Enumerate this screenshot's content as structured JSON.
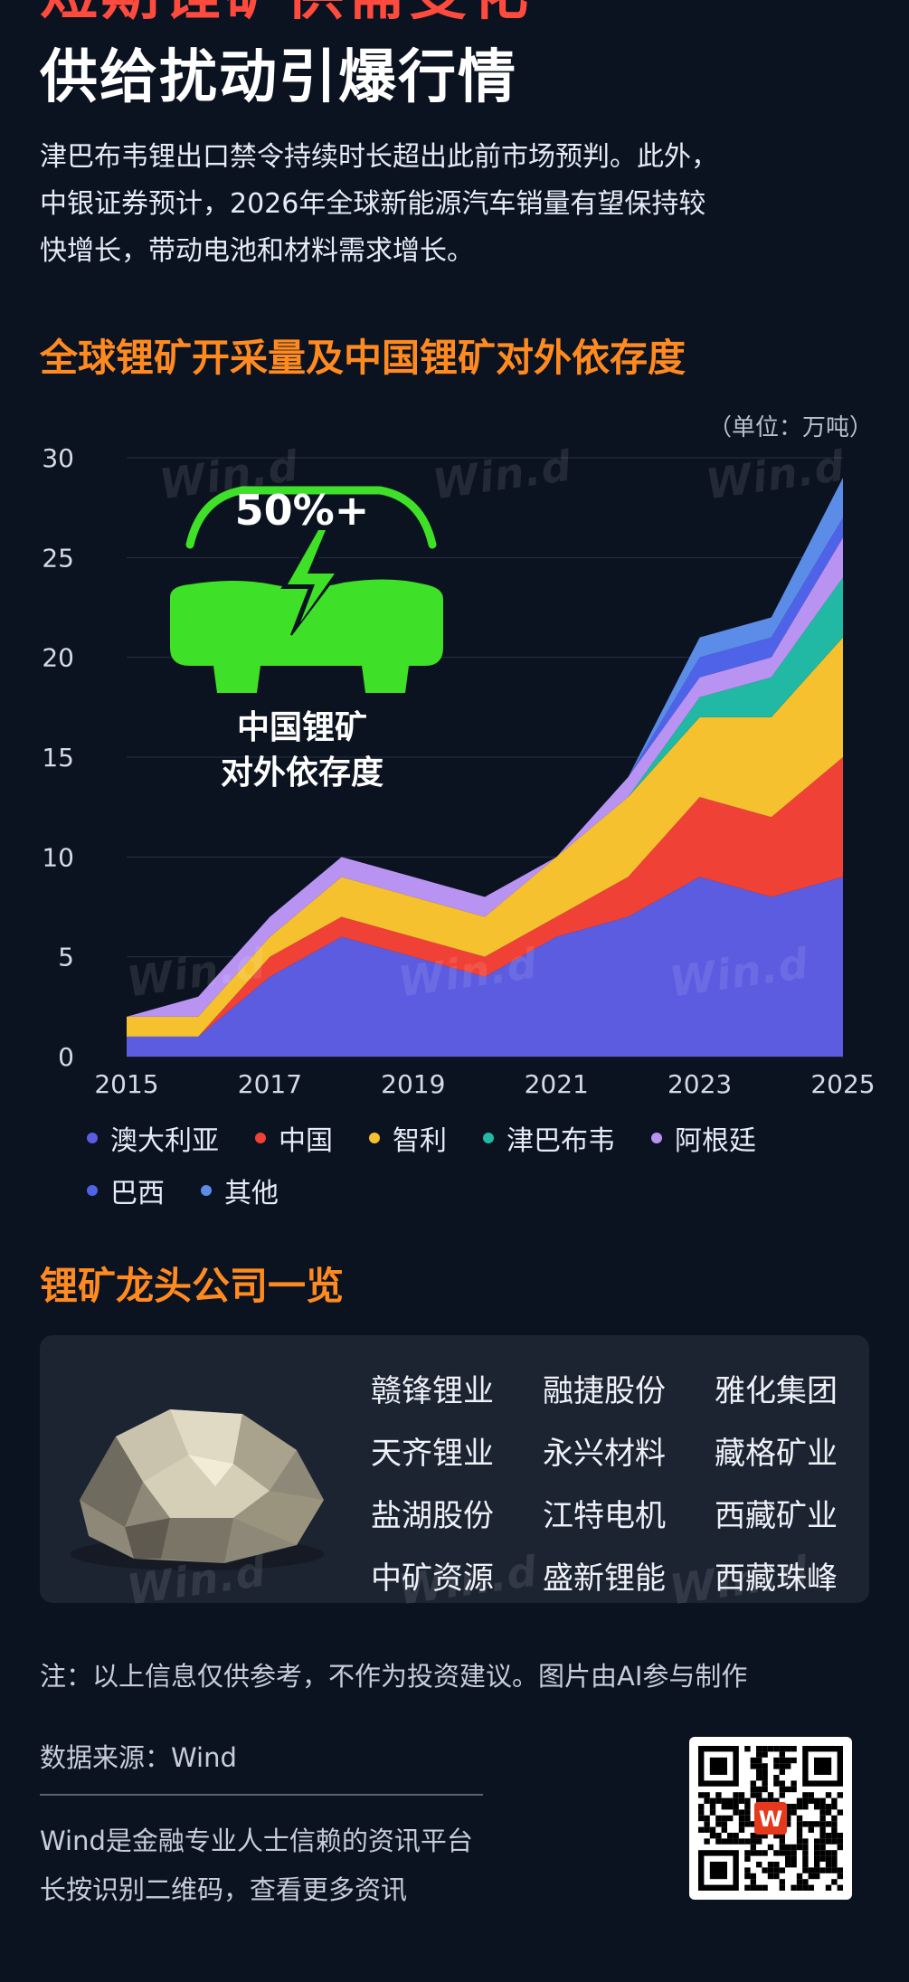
{
  "header": {
    "top_cut_text": "短期锂矿供需变化",
    "headline": "供给扰动引爆行情",
    "lead_lines": [
      "津巴布韦锂出口禁令持续时长超出此前市场预判。此外，",
      "中银证券预计，2026年全球新能源汽车销量有望保持较",
      "快增长，带动电池和材料需求增长。"
    ]
  },
  "chart_section": {
    "title": "全球锂矿开采量及中国锂矿对外依存度",
    "unit": "（单位：万吨）",
    "badge_value": "50%+",
    "badge_label_line1": "中国锂矿",
    "badge_label_line2": "对外依存度"
  },
  "chart_data": {
    "type": "area",
    "stacked": true,
    "x": [
      2015,
      2016,
      2017,
      2018,
      2019,
      2020,
      2021,
      2022,
      2023,
      2024,
      2025
    ],
    "x_tick_labels": [
      "2015",
      "2017",
      "2019",
      "2021",
      "2023",
      "2025"
    ],
    "ylim": [
      0,
      30
    ],
    "y_ticks": [
      0,
      5,
      10,
      15,
      20,
      25,
      30
    ],
    "grid": true,
    "legend_position": "bottom",
    "series": [
      {
        "name": "澳大利亚",
        "color": "#5b5ce0",
        "values": [
          1,
          1,
          4,
          6,
          5,
          4,
          6,
          7,
          9,
          8,
          9
        ]
      },
      {
        "name": "中国",
        "color": "#ef4136",
        "values": [
          0,
          0,
          1,
          1,
          1,
          1,
          1,
          2,
          4,
          4,
          6
        ]
      },
      {
        "name": "智利",
        "color": "#f5c12f",
        "values": [
          1,
          1,
          1,
          2,
          2,
          2,
          3,
          4,
          4,
          5,
          6
        ]
      },
      {
        "name": "津巴布韦",
        "color": "#21b8a4",
        "values": [
          0,
          0,
          0,
          0,
          0,
          0,
          0,
          0,
          1,
          2,
          3
        ]
      },
      {
        "name": "阿根廷",
        "color": "#b993f2",
        "values": [
          0,
          1,
          1,
          1,
          1,
          1,
          0,
          1,
          1,
          1,
          2
        ]
      },
      {
        "name": "巴西",
        "color": "#4f63e8",
        "values": [
          0,
          0,
          0,
          0,
          0,
          0,
          0,
          0,
          1,
          1,
          1
        ]
      },
      {
        "name": "其他",
        "color": "#5b8de8",
        "values": [
          0,
          0,
          0,
          0,
          0,
          0,
          0,
          0,
          1,
          1,
          2
        ]
      }
    ]
  },
  "companies_section": {
    "title": "锂矿龙头公司一览",
    "companies": [
      "赣锋锂业",
      "融捷股份",
      "雅化集团",
      "天齐锂业",
      "永兴材料",
      "藏格矿业",
      "盐湖股份",
      "江特电机",
      "西藏矿业",
      "中矿资源",
      "盛新锂能",
      "西藏珠峰"
    ]
  },
  "footer": {
    "disclaimer": "注：以上信息仅供参考，不作为投资建议。图片由AI参与制作",
    "source": "数据来源：Wind",
    "line1": "Wind是金融专业人士信赖的资讯平台",
    "line2": "长按识别二维码，查看更多资讯",
    "qr_logo": "W"
  },
  "watermark_text": "Win.d",
  "colors": {
    "background": "#0b1220",
    "accent_orange": "#ff8a1f",
    "battery_green": "#3ee028"
  }
}
